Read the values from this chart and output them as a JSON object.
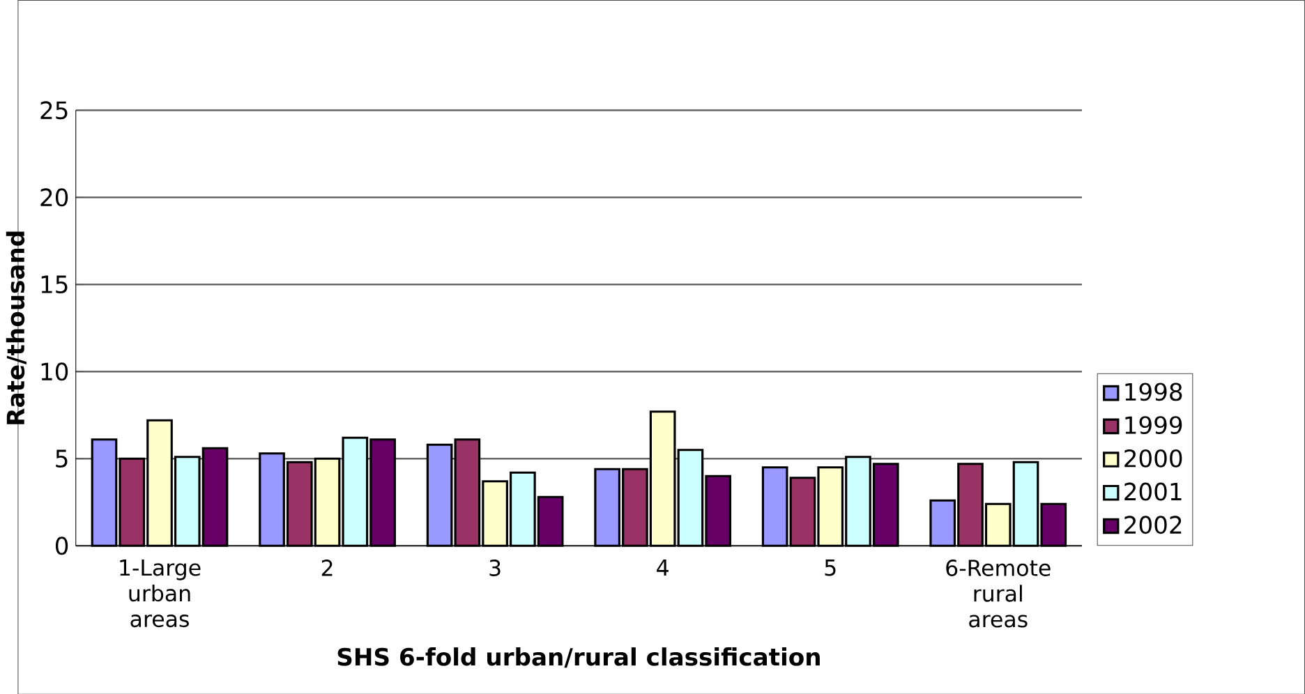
{
  "chart_data": {
    "type": "bar",
    "xlabel": "SHS 6-fold urban/rural classification",
    "ylabel": "Rate/thousand",
    "categories": [
      "1-Large urban areas",
      "2",
      "3",
      "4",
      "5",
      "6-Remote rural areas"
    ],
    "series": [
      {
        "name": "1998",
        "color": "#9999ff",
        "values": [
          6.1,
          5.3,
          5.8,
          4.4,
          4.5,
          2.6
        ]
      },
      {
        "name": "1999",
        "color": "#993366",
        "values": [
          5.0,
          4.8,
          6.1,
          4.4,
          3.9,
          4.7
        ]
      },
      {
        "name": "2000",
        "color": "#ffffcc",
        "values": [
          7.2,
          5.0,
          3.7,
          7.7,
          4.5,
          2.4
        ]
      },
      {
        "name": "2001",
        "color": "#ccffff",
        "values": [
          5.1,
          6.2,
          4.2,
          5.5,
          5.1,
          4.8
        ]
      },
      {
        "name": "2002",
        "color": "#660066",
        "values": [
          5.6,
          6.1,
          2.8,
          4.0,
          4.7,
          2.4
        ]
      }
    ],
    "ylim": [
      0,
      25
    ],
    "yticks": [
      0,
      5,
      10,
      15,
      20,
      25
    ],
    "grid": "y",
    "legend": "right"
  }
}
